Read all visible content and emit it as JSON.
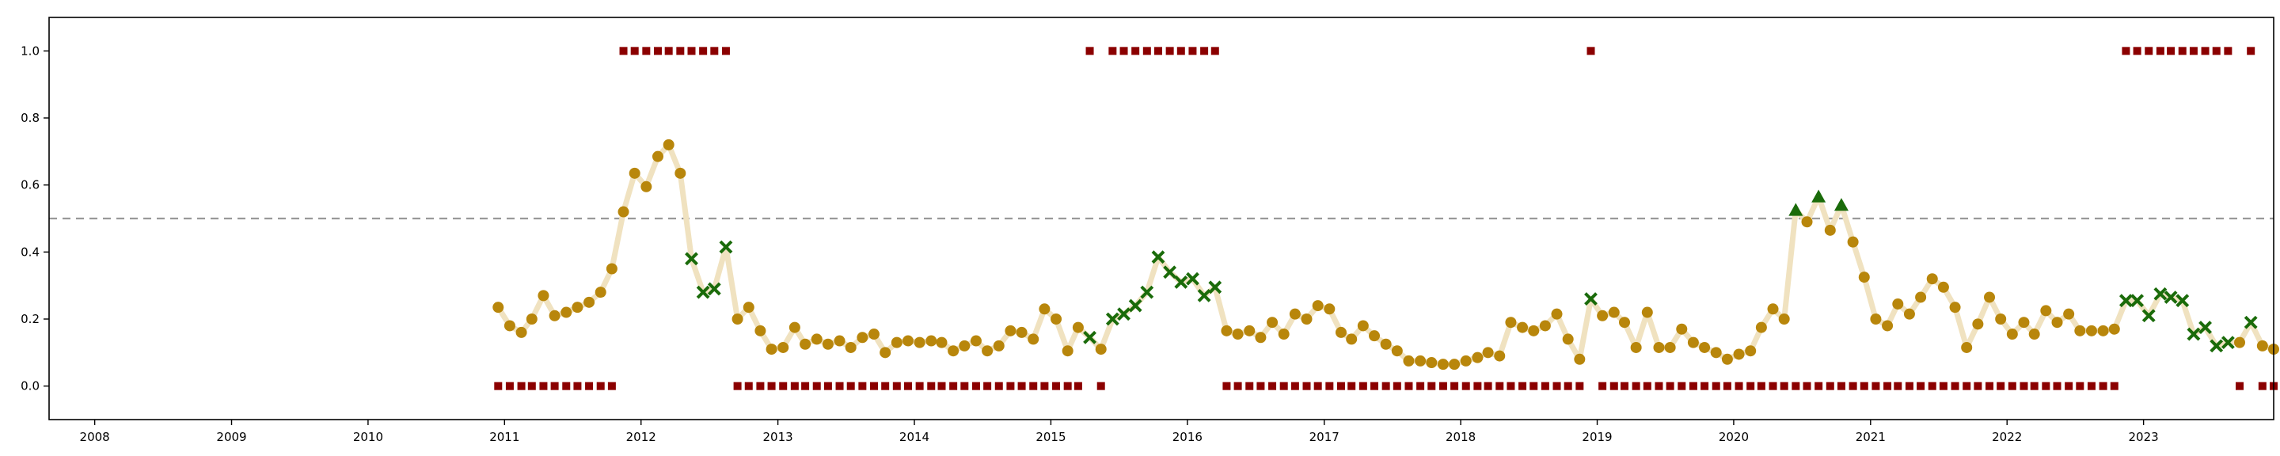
{
  "chart_data": {
    "type": "scatter",
    "title": "",
    "xlabel": "",
    "ylabel": "",
    "xlim": [
      "2007-09-01",
      "2023-12-15"
    ],
    "ylim": [
      -0.1,
      1.1
    ],
    "grid": false,
    "x_ticks": [
      "2008",
      "2009",
      "2010",
      "2011",
      "2012",
      "2013",
      "2014",
      "2015",
      "2016",
      "2017",
      "2018",
      "2019",
      "2020",
      "2021",
      "2022",
      "2023"
    ],
    "y_ticks": [
      "0.0",
      "0.2",
      "0.4",
      "0.6",
      "0.8",
      "1.0"
    ],
    "reference_line": {
      "y": 0.5,
      "style": "dashed",
      "color": "#999999"
    },
    "colors": {
      "line": "#f0e2c0",
      "circle": "#b8860b",
      "x_marker": "#1a6b0a",
      "triangle": "#1a6b0a",
      "square": "#8b0000"
    },
    "score_series": {
      "x": [
        "2010-12",
        "2011-01",
        "2011-02",
        "2011-03",
        "2011-04",
        "2011-05",
        "2011-06",
        "2011-07",
        "2011-08",
        "2011-09",
        "2011-10",
        "2011-11",
        "2011-12",
        "2012-01",
        "2012-02",
        "2012-03",
        "2012-04",
        "2012-05",
        "2012-06",
        "2012-07",
        "2012-08",
        "2012-09",
        "2012-10",
        "2012-11",
        "2012-12",
        "2013-01",
        "2013-02",
        "2013-03",
        "2013-04",
        "2013-05",
        "2013-06",
        "2013-07",
        "2013-08",
        "2013-09",
        "2013-10",
        "2013-11",
        "2013-12",
        "2014-01",
        "2014-02",
        "2014-03",
        "2014-04",
        "2014-05",
        "2014-06",
        "2014-07",
        "2014-08",
        "2014-09",
        "2014-10",
        "2014-11",
        "2014-12",
        "2015-01",
        "2015-02",
        "2015-03",
        "2015-04",
        "2015-05",
        "2015-06",
        "2015-07",
        "2015-08",
        "2015-09",
        "2015-10",
        "2015-11",
        "2015-12",
        "2016-01",
        "2016-02",
        "2016-03",
        "2016-04",
        "2016-05",
        "2016-06",
        "2016-07",
        "2016-08",
        "2016-09",
        "2016-10",
        "2016-11",
        "2016-12",
        "2017-01",
        "2017-02",
        "2017-03",
        "2017-04",
        "2017-05",
        "2017-06",
        "2017-07",
        "2017-08",
        "2017-09",
        "2017-10",
        "2017-11",
        "2017-12",
        "2018-01",
        "2018-02",
        "2018-03",
        "2018-04",
        "2018-05",
        "2018-06",
        "2018-07",
        "2018-08",
        "2018-09",
        "2018-10",
        "2018-11",
        "2018-12",
        "2019-01",
        "2019-02",
        "2019-03",
        "2019-04",
        "2019-05",
        "2019-06",
        "2019-07",
        "2019-08",
        "2019-09",
        "2019-10",
        "2019-11",
        "2019-12",
        "2020-01",
        "2020-02",
        "2020-03",
        "2020-04",
        "2020-05",
        "2020-06",
        "2020-07",
        "2020-08",
        "2020-09",
        "2020-10",
        "2020-11",
        "2020-12",
        "2021-01",
        "2021-02",
        "2021-03",
        "2021-04",
        "2021-05",
        "2021-06",
        "2021-07",
        "2021-08",
        "2021-09",
        "2021-10",
        "2021-11",
        "2021-12",
        "2022-01",
        "2022-02",
        "2022-03",
        "2022-04",
        "2022-05",
        "2022-06",
        "2022-07",
        "2022-08",
        "2022-09",
        "2022-10",
        "2022-11",
        "2022-12",
        "2023-01",
        "2023-02",
        "2023-03",
        "2023-04",
        "2023-05",
        "2023-06",
        "2023-07",
        "2023-08",
        "2023-09",
        "2023-10",
        "2023-11",
        "2023-12"
      ],
      "y": [
        0.235,
        0.18,
        0.16,
        0.2,
        0.27,
        0.21,
        0.22,
        0.235,
        0.25,
        0.28,
        0.35,
        0.52,
        0.635,
        0.595,
        0.685,
        0.72,
        0.635,
        0.38,
        0.28,
        0.29,
        0.415,
        0.2,
        0.235,
        0.165,
        0.11,
        0.115,
        0.175,
        0.125,
        0.14,
        0.125,
        0.135,
        0.115,
        0.145,
        0.155,
        0.1,
        0.13,
        0.135,
        0.13,
        0.135,
        0.13,
        0.105,
        0.12,
        0.135,
        0.105,
        0.12,
        0.165,
        0.16,
        0.14,
        0.23,
        0.2,
        0.105,
        0.175,
        0.145,
        0.11,
        0.2,
        0.215,
        0.24,
        0.28,
        0.385,
        0.34,
        0.31,
        0.32,
        0.27,
        0.295,
        0.165,
        0.155,
        0.165,
        0.145,
        0.19,
        0.155,
        0.215,
        0.2,
        0.24,
        0.23,
        0.16,
        0.14,
        0.18,
        0.15,
        0.125,
        0.105,
        0.075,
        0.075,
        0.07,
        0.065,
        0.065,
        0.075,
        0.085,
        0.1,
        0.09,
        0.19,
        0.175,
        0.165,
        0.18,
        0.215,
        0.14,
        0.08,
        0.26,
        0.21,
        0.22,
        0.19,
        0.115,
        0.22,
        0.115,
        0.115,
        0.17,
        0.13,
        0.115,
        0.1,
        0.08,
        0.095,
        0.105,
        0.175,
        0.23,
        0.2,
        0.525,
        0.49,
        0.565,
        0.465,
        0.54,
        0.43,
        0.325,
        0.2,
        0.18,
        0.245,
        0.215,
        0.265,
        0.32,
        0.295,
        0.235,
        0.115,
        0.185,
        0.265,
        0.2,
        0.155,
        0.19,
        0.155,
        0.225,
        0.19,
        0.215,
        0.165,
        0.165,
        0.165,
        0.17,
        0.255,
        0.255,
        0.21,
        0.275,
        0.265,
        0.255,
        0.155,
        0.175,
        0.12,
        0.13,
        0.13,
        0.19,
        0.12,
        0.11
      ],
      "markers": [
        "o",
        "o",
        "o",
        "o",
        "o",
        "o",
        "o",
        "o",
        "o",
        "o",
        "o",
        "o",
        "o",
        "o",
        "o",
        "o",
        "o",
        "x",
        "x",
        "x",
        "x",
        "o",
        "o",
        "o",
        "o",
        "o",
        "o",
        "o",
        "o",
        "o",
        "o",
        "o",
        "o",
        "o",
        "o",
        "o",
        "o",
        "o",
        "o",
        "o",
        "o",
        "o",
        "o",
        "o",
        "o",
        "o",
        "o",
        "o",
        "o",
        "o",
        "o",
        "o",
        "x",
        "o",
        "x",
        "x",
        "x",
        "x",
        "x",
        "x",
        "x",
        "x",
        "x",
        "x",
        "o",
        "o",
        "o",
        "o",
        "o",
        "o",
        "o",
        "o",
        "o",
        "o",
        "o",
        "o",
        "o",
        "o",
        "o",
        "o",
        "o",
        "o",
        "o",
        "o",
        "o",
        "o",
        "o",
        "o",
        "o",
        "o",
        "o",
        "o",
        "o",
        "o",
        "o",
        "o",
        "x",
        "o",
        "o",
        "o",
        "o",
        "o",
        "o",
        "o",
        "o",
        "o",
        "o",
        "o",
        "o",
        "o",
        "o",
        "o",
        "o",
        "o",
        "^",
        "o",
        "^",
        "o",
        "^",
        "o",
        "o",
        "o",
        "o",
        "o",
        "o",
        "o",
        "o",
        "o",
        "o",
        "o",
        "o",
        "o",
        "o",
        "o",
        "o",
        "o",
        "o",
        "o",
        "o",
        "o",
        "o",
        "o",
        "o",
        "x",
        "x",
        "x",
        "x",
        "x",
        "x",
        "x",
        "x",
        "x",
        "x",
        "o",
        "x",
        "o",
        "o"
      ]
    },
    "binary_series": {
      "marker": "s",
      "x": [
        "2010-12",
        "2011-01",
        "2011-02",
        "2011-03",
        "2011-04",
        "2011-05",
        "2011-06",
        "2011-07",
        "2011-08",
        "2011-09",
        "2011-10",
        "2011-11",
        "2011-12",
        "2012-01",
        "2012-02",
        "2012-03",
        "2012-04",
        "2012-05",
        "2012-06",
        "2012-07",
        "2012-08",
        "2012-09",
        "2012-10",
        "2012-11",
        "2012-12",
        "2013-01",
        "2013-02",
        "2013-03",
        "2013-04",
        "2013-05",
        "2013-06",
        "2013-07",
        "2013-08",
        "2013-09",
        "2013-10",
        "2013-11",
        "2013-12",
        "2014-01",
        "2014-02",
        "2014-03",
        "2014-04",
        "2014-05",
        "2014-06",
        "2014-07",
        "2014-08",
        "2014-09",
        "2014-10",
        "2014-11",
        "2014-12",
        "2015-01",
        "2015-02",
        "2015-03",
        "2015-04",
        "2015-05",
        "2015-06",
        "2015-07",
        "2015-08",
        "2015-09",
        "2015-10",
        "2015-11",
        "2015-12",
        "2016-01",
        "2016-02",
        "2016-03",
        "2016-04",
        "2016-05",
        "2016-06",
        "2016-07",
        "2016-08",
        "2016-09",
        "2016-10",
        "2016-11",
        "2016-12",
        "2017-01",
        "2017-02",
        "2017-03",
        "2017-04",
        "2017-05",
        "2017-06",
        "2017-07",
        "2017-08",
        "2017-09",
        "2017-10",
        "2017-11",
        "2017-12",
        "2018-01",
        "2018-02",
        "2018-03",
        "2018-04",
        "2018-05",
        "2018-06",
        "2018-07",
        "2018-08",
        "2018-09",
        "2018-10",
        "2018-11",
        "2018-12",
        "2019-01",
        "2019-02",
        "2019-03",
        "2019-04",
        "2019-05",
        "2019-06",
        "2019-07",
        "2019-08",
        "2019-09",
        "2019-10",
        "2019-11",
        "2019-12",
        "2020-01",
        "2020-02",
        "2020-03",
        "2020-04",
        "2020-05",
        "2020-06",
        "2020-07",
        "2020-08",
        "2020-09",
        "2020-10",
        "2020-11",
        "2020-12",
        "2021-01",
        "2021-02",
        "2021-03",
        "2021-04",
        "2021-05",
        "2021-06",
        "2021-07",
        "2021-08",
        "2021-09",
        "2021-10",
        "2021-11",
        "2021-12",
        "2022-01",
        "2022-02",
        "2022-03",
        "2022-04",
        "2022-05",
        "2022-06",
        "2022-07",
        "2022-08",
        "2022-09",
        "2022-10",
        "2022-11",
        "2022-12",
        "2023-01",
        "2023-02",
        "2023-03",
        "2023-04",
        "2023-05",
        "2023-06",
        "2023-07",
        "2023-08",
        "2023-09",
        "2023-10",
        "2023-11",
        "2023-12"
      ],
      "y": [
        0,
        0,
        0,
        0,
        0,
        0,
        0,
        0,
        0,
        0,
        0,
        1,
        1,
        1,
        1,
        1,
        1,
        1,
        1,
        1,
        1,
        0,
        0,
        0,
        0,
        0,
        0,
        0,
        0,
        0,
        0,
        0,
        0,
        0,
        0,
        0,
        0,
        0,
        0,
        0,
        0,
        0,
        0,
        0,
        0,
        0,
        0,
        0,
        0,
        0,
        0,
        0,
        1,
        0,
        1,
        1,
        1,
        1,
        1,
        1,
        1,
        1,
        1,
        1,
        0,
        0,
        0,
        0,
        0,
        0,
        0,
        0,
        0,
        0,
        0,
        0,
        0,
        0,
        0,
        0,
        0,
        0,
        0,
        0,
        0,
        0,
        0,
        0,
        0,
        0,
        0,
        0,
        0,
        0,
        0,
        0,
        1,
        0,
        0,
        0,
        0,
        0,
        0,
        0,
        0,
        0,
        0,
        0,
        0,
        0,
        0,
        0,
        0,
        0,
        0,
        0,
        0,
        0,
        0,
        0,
        0,
        0,
        0,
        0,
        0,
        0,
        0,
        0,
        0,
        0,
        0,
        0,
        0,
        0,
        0,
        0,
        0,
        0,
        0,
        0,
        0,
        0,
        0,
        1,
        1,
        1,
        1,
        1,
        1,
        1,
        1,
        1,
        1,
        0,
        1,
        0,
        0
      ]
    }
  }
}
